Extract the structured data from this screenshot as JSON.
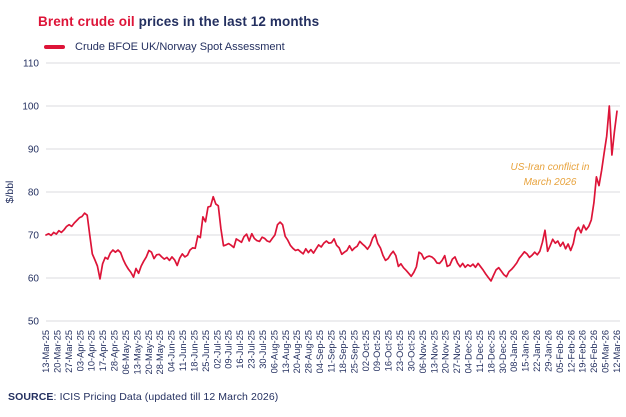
{
  "header": {
    "title_highlight": "Brent crude oil",
    "title_rest": " prices in the last 12 months"
  },
  "legend": {
    "label": "Crude BFOE UK/Norway Spot Assessment"
  },
  "annotation": {
    "line1": "US-Iran conflict in",
    "line2": "March 2026"
  },
  "source": {
    "label": "SOURCE",
    "text": ": ICIS Pricing Data (updated till 12 March 2026)"
  },
  "colors": {
    "line": "#DD1438",
    "navy": "#243060",
    "orange": "#E8A33D",
    "grid": "#DBDBDF",
    "background": "#FFFFFF"
  },
  "chart_data": {
    "type": "line",
    "title": "Brent crude oil prices in the last 12 months",
    "xlabel": "",
    "ylabel": "$/bbl",
    "ylim": [
      50,
      110
    ],
    "yticks": [
      110,
      100,
      90,
      80,
      70,
      60,
      50
    ],
    "grid": "horizontal-only",
    "legend_position": "top-left",
    "annotations": [
      {
        "text": "US-Iran conflict in March 2026",
        "near_x": "05-Mar-26",
        "near_y": 85
      }
    ],
    "x_tick_labels": [
      "13-Mar-25",
      "20-Mar-25",
      "27-Mar-25",
      "03-Apr-25",
      "10-Apr-25",
      "17-Apr-25",
      "28-Apr-25",
      "06-May-25",
      "13-May-25",
      "20-May-25",
      "28-May-25",
      "04-Jun-25",
      "11-Jun-25",
      "18-Jun-25",
      "25-Jun-25",
      "02-Jul-25",
      "09-Jul-25",
      "16-Jul-25",
      "23-Jul-25",
      "30-Jul-25",
      "06-Aug-25",
      "13-Aug-25",
      "20-Aug-25",
      "28-Aug-25",
      "04-Sep-25",
      "11-Sep-25",
      "18-Sep-25",
      "25-Sep-25",
      "02-Oct-25",
      "09-Oct-25",
      "16-Oct-25",
      "23-Oct-25",
      "30-Oct-25",
      "06-Nov-25",
      "13-Nov-25",
      "20-Nov-25",
      "27-Nov-25",
      "04-Dec-25",
      "11-Dec-25",
      "18-Dec-25",
      "30-Dec-25",
      "08-Jan-26",
      "15-Jan-26",
      "22-Jan-26",
      "29-Jan-26",
      "05-Feb-26",
      "12-Feb-26",
      "19-Feb-26",
      "26-Feb-26",
      "05-Mar-26",
      "12-Mar-26"
    ],
    "series": [
      {
        "name": "Crude BFOE UK/Norway Spot Assessment",
        "color": "#DD1438",
        "values": [
          70.0,
          70.3,
          69.9,
          70.6,
          70.2,
          71.0,
          70.6,
          71.2,
          72.0,
          72.4,
          72.0,
          72.8,
          73.4,
          74.0,
          74.3,
          75.1,
          74.6,
          70.1,
          65.6,
          64.2,
          62.8,
          59.8,
          63.3,
          64.8,
          64.4,
          65.8,
          66.5,
          66.0,
          66.5,
          65.9,
          64.3,
          63.1,
          62.1,
          61.3,
          60.2,
          62.2,
          61.1,
          62.8,
          63.9,
          64.9,
          66.4,
          66.0,
          64.5,
          65.4,
          65.5,
          64.9,
          64.4,
          64.8,
          64.1,
          64.9,
          64.2,
          62.9,
          64.6,
          65.6,
          64.9,
          65.3,
          66.5,
          67.0,
          66.9,
          69.8,
          69.4,
          74.2,
          73.1,
          76.5,
          76.7,
          78.9,
          77.2,
          76.8,
          71.5,
          67.5,
          67.7,
          68.0,
          67.6,
          67.1,
          69.1,
          68.7,
          68.3,
          69.6,
          70.2,
          68.6,
          70.3,
          69.2,
          68.7,
          68.5,
          69.5,
          69.2,
          68.6,
          68.4,
          69.2,
          70.0,
          72.4,
          73.0,
          72.4,
          69.7,
          68.8,
          67.6,
          66.9,
          66.4,
          66.6,
          66.1,
          65.6,
          66.8,
          65.9,
          66.6,
          65.8,
          66.8,
          67.7,
          67.2,
          68.1,
          68.6,
          68.1,
          68.2,
          69.1,
          67.6,
          67.0,
          65.5,
          66.0,
          66.4,
          67.5,
          66.4,
          67.0,
          67.4,
          68.5,
          67.9,
          67.4,
          66.7,
          67.6,
          69.3,
          70.1,
          68.0,
          67.0,
          65.3,
          64.1,
          64.5,
          65.5,
          66.2,
          65.2,
          62.7,
          63.3,
          62.4,
          61.8,
          61.1,
          60.4,
          61.3,
          62.6,
          66.0,
          65.6,
          64.4,
          64.9,
          65.1,
          64.9,
          64.4,
          63.5,
          63.4,
          64.1,
          65.2,
          62.7,
          63.0,
          64.4,
          64.9,
          63.5,
          62.6,
          63.4,
          62.5,
          63.1,
          62.7,
          63.2,
          62.5,
          63.4,
          62.6,
          61.8,
          60.9,
          60.1,
          59.3,
          60.6,
          61.9,
          62.4,
          61.6,
          60.8,
          60.3,
          61.5,
          62.0,
          62.7,
          63.5,
          64.6,
          65.3,
          66.1,
          65.6,
          64.8,
          65.3,
          66.0,
          65.4,
          66.2,
          68.3,
          71.1,
          66.2,
          67.5,
          69.0,
          68.1,
          68.6,
          67.4,
          68.3,
          66.8,
          67.9,
          66.4,
          68.0,
          70.9,
          71.8,
          70.5,
          72.3,
          71.2,
          72.0,
          73.5,
          77.5,
          83.5,
          81.5,
          85.0,
          89.0,
          93.0,
          100.0,
          88.6,
          94.0,
          98.8
        ]
      }
    ]
  }
}
